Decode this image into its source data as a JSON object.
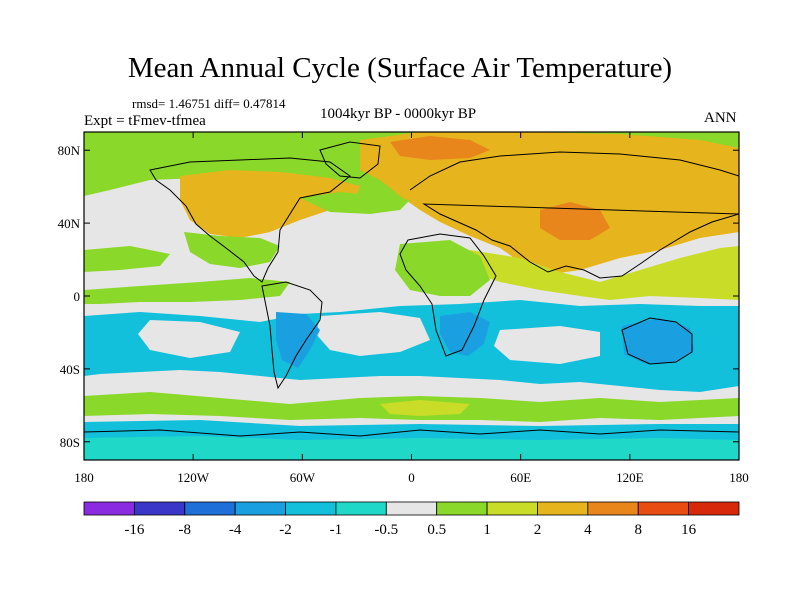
{
  "title": "Mean Annual Cycle (Surface Air Temperature)",
  "stats": "rmsd= 1.46751 diff= 0.47814",
  "experiment": "Expt = tFmev-tfmea",
  "period": "1004kyr BP - 0000kyr BP",
  "season": "ANN",
  "lat_ticks": [
    "80N",
    "40N",
    "0",
    "40S",
    "80S"
  ],
  "lat_values": [
    80,
    40,
    0,
    -40,
    -80
  ],
  "lon_ticks": [
    "180",
    "120W",
    "60W",
    "0",
    "60E",
    "120E",
    "180"
  ],
  "lon_values": [
    -180,
    -120,
    -60,
    0,
    60,
    120,
    180
  ],
  "colorbar": {
    "labels": [
      "-16",
      "-8",
      "-4",
      "-2",
      "-1",
      "-0.5",
      "0.5",
      "1",
      "2",
      "4",
      "8",
      "16"
    ],
    "colors": [
      "#8a2be2",
      "#3a36c8",
      "#1f6fd8",
      "#1aa0e0",
      "#12c0dc",
      "#20d8c8",
      "#e6e6e6",
      "#8ad82a",
      "#c8dc28",
      "#e6b41c",
      "#e8861c",
      "#e84c10",
      "#d8280a"
    ]
  },
  "colors": {
    "neutral": "#e6e6e6",
    "cool_light": "#20d8c8",
    "cool": "#12c0dc",
    "cool_mid": "#1aa0e0",
    "warm_light": "#8ad82a",
    "warm": "#c8dc28",
    "warmer": "#e6b41c",
    "hot": "#e8861c"
  }
}
